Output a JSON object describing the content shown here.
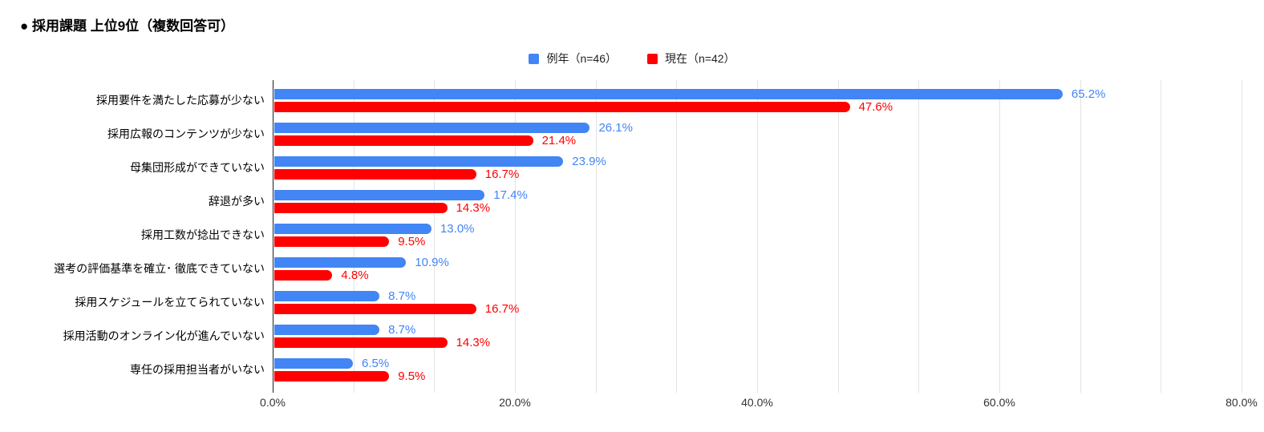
{
  "title": "● 採用課題 上位9位（複数回答可）",
  "legend": [
    {
      "label": "例年（n=46）",
      "color": "#4285F4"
    },
    {
      "label": "現在（n=42）",
      "color": "#FF0000"
    }
  ],
  "colors": {
    "series_blue": "#4285F4",
    "series_red": "#FF0000",
    "gridline": "#e3e3e3",
    "axis_line": "#1f1f1f",
    "axis_text": "#333333",
    "category_text": "#000000"
  },
  "chart_data": {
    "type": "bar",
    "orientation": "horizontal",
    "title": "採用課題 上位9位（複数回答可）",
    "categories": [
      "採用要件を満たした応募が少ない",
      "採用広報のコンテンツが少ない",
      "母集団形成ができていない",
      "辞退が多い",
      "採用工数が捻出できない",
      "選考の評価基準を確立･ 徹底できていない",
      "採用スケジュールを立てられていない",
      "採用活動のオンライン化が進んでいない",
      "専任の採用担当者がいない"
    ],
    "series": [
      {
        "name": "例年（n=46）",
        "color": "#4285F4",
        "values": [
          65.2,
          26.1,
          23.9,
          17.4,
          13.0,
          10.9,
          8.7,
          8.7,
          6.5
        ]
      },
      {
        "name": "現在（n=42）",
        "color": "#FF0000",
        "values": [
          47.6,
          21.4,
          16.7,
          14.3,
          9.5,
          4.8,
          16.7,
          14.3,
          9.5
        ]
      }
    ],
    "value_label_format": "0.0%",
    "xlabel": "",
    "ylabel": "",
    "xlim": [
      0,
      80
    ],
    "x_ticks": [
      "0.0%",
      "20.0%",
      "40.0%",
      "60.0%",
      "80.0%"
    ],
    "x_tick_values": [
      0,
      20,
      40,
      60,
      80
    ],
    "minor_gridline_step_percent": 6.667,
    "grid": true,
    "legend_position": "top-center"
  }
}
